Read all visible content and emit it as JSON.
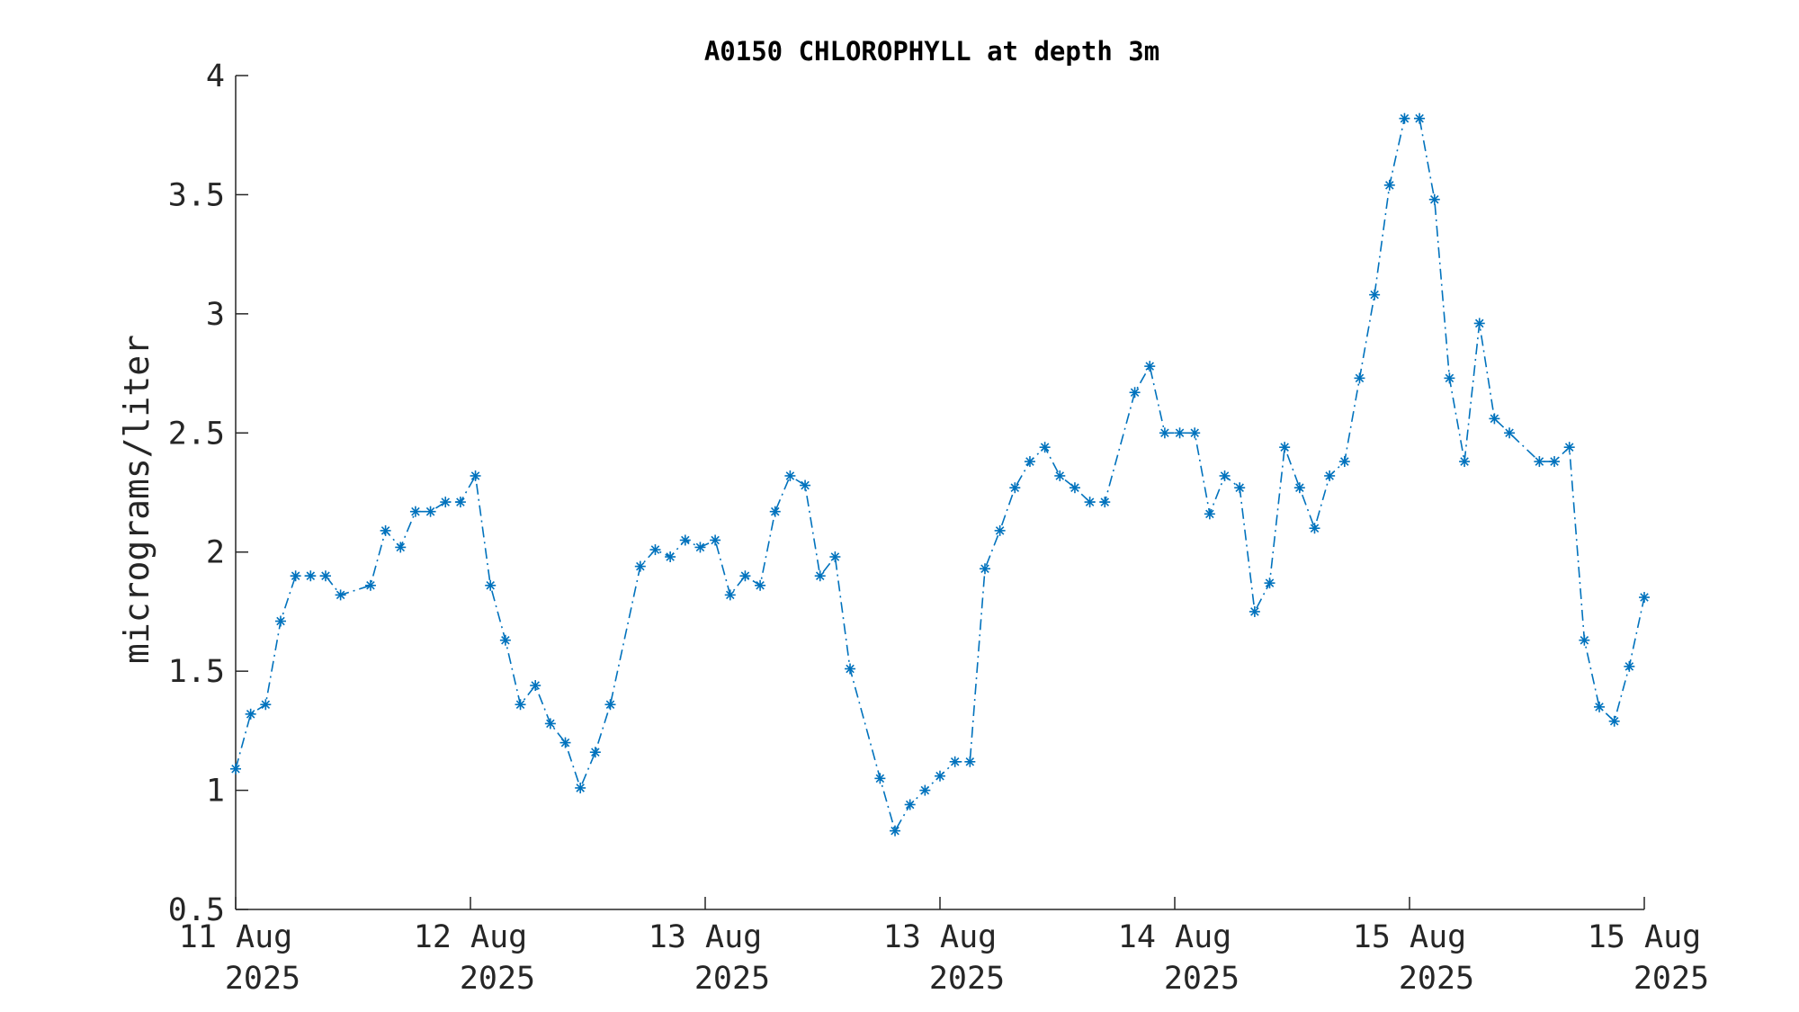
{
  "chart_data": {
    "type": "line",
    "title": "A0150 CHLOROPHYLL at depth 3m",
    "xlabel": "",
    "ylabel": "micrograms/liter",
    "ylim": [
      0.5,
      4
    ],
    "yticks": [
      "0.5",
      "1",
      "1.5",
      "2",
      "2.5",
      "3",
      "3.5",
      "4"
    ],
    "xticks": [
      {
        "line1": "11 Aug",
        "line2": "2025"
      },
      {
        "line1": "12 Aug",
        "line2": "2025"
      },
      {
        "line1": "13 Aug",
        "line2": "2025"
      },
      {
        "line1": "13 Aug",
        "line2": "2025"
      },
      {
        "line1": "14 Aug",
        "line2": "2025"
      },
      {
        "line1": "15 Aug",
        "line2": "2025"
      },
      {
        "line1": "15 Aug",
        "line2": "2025"
      }
    ],
    "grid": false,
    "marker": "asterisk",
    "line_style": "dash-dot",
    "color": "#0072BD",
    "series": [
      {
        "values": [
          1.09,
          1.32,
          1.36,
          1.71,
          1.9,
          1.9,
          1.9,
          1.82,
          null,
          1.86,
          2.09,
          2.02,
          2.17,
          2.17,
          2.21,
          2.21,
          2.32,
          1.86,
          1.63,
          1.36,
          1.44,
          1.28,
          1.2,
          1.01,
          1.16,
          1.36,
          null,
          1.94,
          2.01,
          1.98,
          2.05,
          2.02,
          2.05,
          1.82,
          1.9,
          1.86,
          2.17,
          2.32,
          2.28,
          1.9,
          1.98,
          1.51,
          null,
          1.05,
          0.83,
          0.94,
          1.0,
          1.06,
          1.12,
          1.12,
          1.93,
          2.09,
          2.27,
          2.38,
          2.44,
          2.32,
          2.27,
          2.21,
          2.21,
          null,
          2.67,
          2.78,
          2.5,
          2.5,
          2.5,
          2.16,
          2.32,
          2.27,
          1.75,
          1.87,
          2.44,
          2.27,
          2.1,
          2.32,
          2.38,
          2.73,
          3.08,
          3.54,
          3.82,
          3.82,
          3.48,
          2.73,
          2.38,
          2.96,
          2.56,
          2.5,
          null,
          2.38,
          2.38,
          2.44,
          1.63,
          1.35,
          1.29,
          1.52,
          1.81
        ]
      }
    ]
  }
}
